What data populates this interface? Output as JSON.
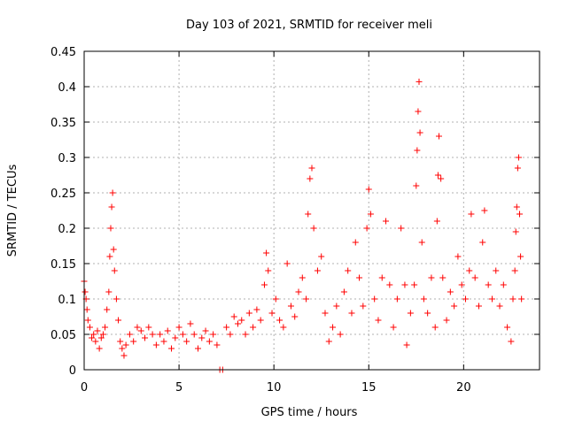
{
  "chart_data": {
    "type": "scatter",
    "title": "Day 103 of 2021, SRMTID for receiver meli",
    "xlabel": "GPS time / hours",
    "ylabel": "SRMTID / TECUs",
    "xlim": [
      0,
      24
    ],
    "ylim": [
      0,
      0.45
    ],
    "x_ticks": [
      0,
      5,
      10,
      15,
      20
    ],
    "x_tick_labels": [
      "0",
      "5",
      "10",
      "15",
      "20"
    ],
    "y_ticks": [
      0,
      0.05,
      0.1,
      0.15,
      0.2,
      0.25,
      0.3,
      0.35,
      0.4,
      0.45
    ],
    "y_tick_labels": [
      "0",
      "0.05",
      "0.1",
      "0.15",
      "0.2",
      "0.25",
      "0.3",
      "0.35",
      "0.4",
      "0.45"
    ],
    "grid": true,
    "marker": "+",
    "color": "#ff0000",
    "series": [
      {
        "name": "SRMTID",
        "points": [
          [
            0.0,
            0.125
          ],
          [
            0.05,
            0.11
          ],
          [
            0.1,
            0.1
          ],
          [
            0.15,
            0.085
          ],
          [
            0.2,
            0.07
          ],
          [
            0.3,
            0.06
          ],
          [
            0.4,
            0.045
          ],
          [
            0.5,
            0.05
          ],
          [
            0.6,
            0.04
          ],
          [
            0.7,
            0.055
          ],
          [
            0.8,
            0.03
          ],
          [
            0.9,
            0.045
          ],
          [
            1.0,
            0.05
          ],
          [
            1.1,
            0.06
          ],
          [
            1.2,
            0.085
          ],
          [
            1.3,
            0.11
          ],
          [
            1.35,
            0.16
          ],
          [
            1.4,
            0.2
          ],
          [
            1.45,
            0.23
          ],
          [
            1.5,
            0.25
          ],
          [
            1.55,
            0.17
          ],
          [
            1.6,
            0.14
          ],
          [
            1.7,
            0.1
          ],
          [
            1.8,
            0.07
          ],
          [
            1.9,
            0.04
          ],
          [
            2.0,
            0.03
          ],
          [
            2.1,
            0.02
          ],
          [
            2.2,
            0.035
          ],
          [
            2.4,
            0.05
          ],
          [
            2.6,
            0.04
          ],
          [
            2.8,
            0.06
          ],
          [
            3.0,
            0.055
          ],
          [
            3.2,
            0.045
          ],
          [
            3.4,
            0.06
          ],
          [
            3.6,
            0.05
          ],
          [
            3.8,
            0.035
          ],
          [
            4.0,
            0.05
          ],
          [
            4.2,
            0.04
          ],
          [
            4.4,
            0.055
          ],
          [
            4.6,
            0.03
          ],
          [
            4.8,
            0.045
          ],
          [
            5.0,
            0.06
          ],
          [
            5.2,
            0.05
          ],
          [
            5.4,
            0.04
          ],
          [
            5.6,
            0.065
          ],
          [
            5.8,
            0.05
          ],
          [
            6.0,
            0.03
          ],
          [
            6.2,
            0.045
          ],
          [
            6.4,
            0.055
          ],
          [
            6.6,
            0.04
          ],
          [
            6.8,
            0.05
          ],
          [
            7.0,
            0.035
          ],
          [
            7.15,
            0.0
          ],
          [
            7.3,
            0.0
          ],
          [
            7.5,
            0.06
          ],
          [
            7.7,
            0.05
          ],
          [
            7.9,
            0.075
          ],
          [
            8.1,
            0.065
          ],
          [
            8.3,
            0.07
          ],
          [
            8.5,
            0.05
          ],
          [
            8.7,
            0.08
          ],
          [
            8.9,
            0.06
          ],
          [
            9.1,
            0.085
          ],
          [
            9.3,
            0.07
          ],
          [
            9.5,
            0.12
          ],
          [
            9.6,
            0.165
          ],
          [
            9.7,
            0.14
          ],
          [
            9.9,
            0.08
          ],
          [
            10.1,
            0.1
          ],
          [
            10.3,
            0.07
          ],
          [
            10.5,
            0.06
          ],
          [
            10.7,
            0.15
          ],
          [
            10.9,
            0.09
          ],
          [
            11.1,
            0.075
          ],
          [
            11.3,
            0.11
          ],
          [
            11.5,
            0.13
          ],
          [
            11.7,
            0.1
          ],
          [
            11.8,
            0.22
          ],
          [
            11.9,
            0.27
          ],
          [
            12.0,
            0.285
          ],
          [
            12.1,
            0.2
          ],
          [
            12.3,
            0.14
          ],
          [
            12.5,
            0.16
          ],
          [
            12.7,
            0.08
          ],
          [
            12.9,
            0.04
          ],
          [
            13.1,
            0.06
          ],
          [
            13.3,
            0.09
          ],
          [
            13.5,
            0.05
          ],
          [
            13.7,
            0.11
          ],
          [
            13.9,
            0.14
          ],
          [
            14.1,
            0.08
          ],
          [
            14.3,
            0.18
          ],
          [
            14.5,
            0.13
          ],
          [
            14.7,
            0.09
          ],
          [
            14.9,
            0.2
          ],
          [
            15.0,
            0.255
          ],
          [
            15.1,
            0.22
          ],
          [
            15.3,
            0.1
          ],
          [
            15.5,
            0.07
          ],
          [
            15.7,
            0.13
          ],
          [
            15.9,
            0.21
          ],
          [
            16.1,
            0.12
          ],
          [
            16.3,
            0.06
          ],
          [
            16.5,
            0.1
          ],
          [
            16.7,
            0.2
          ],
          [
            16.9,
            0.12
          ],
          [
            17.0,
            0.035
          ],
          [
            17.2,
            0.08
          ],
          [
            17.4,
            0.12
          ],
          [
            17.5,
            0.26
          ],
          [
            17.55,
            0.31
          ],
          [
            17.6,
            0.365
          ],
          [
            17.65,
            0.407
          ],
          [
            17.7,
            0.335
          ],
          [
            17.8,
            0.18
          ],
          [
            17.9,
            0.1
          ],
          [
            18.1,
            0.08
          ],
          [
            18.3,
            0.13
          ],
          [
            18.5,
            0.06
          ],
          [
            18.6,
            0.21
          ],
          [
            18.65,
            0.275
          ],
          [
            18.7,
            0.33
          ],
          [
            18.8,
            0.27
          ],
          [
            18.9,
            0.13
          ],
          [
            19.1,
            0.07
          ],
          [
            19.3,
            0.11
          ],
          [
            19.5,
            0.09
          ],
          [
            19.7,
            0.16
          ],
          [
            19.9,
            0.12
          ],
          [
            20.1,
            0.1
          ],
          [
            20.3,
            0.14
          ],
          [
            20.4,
            0.22
          ],
          [
            20.6,
            0.13
          ],
          [
            20.8,
            0.09
          ],
          [
            21.0,
            0.18
          ],
          [
            21.1,
            0.225
          ],
          [
            21.3,
            0.12
          ],
          [
            21.5,
            0.1
          ],
          [
            21.7,
            0.14
          ],
          [
            21.9,
            0.09
          ],
          [
            22.1,
            0.12
          ],
          [
            22.3,
            0.06
          ],
          [
            22.5,
            0.04
          ],
          [
            22.6,
            0.1
          ],
          [
            22.7,
            0.14
          ],
          [
            22.75,
            0.195
          ],
          [
            22.8,
            0.23
          ],
          [
            22.85,
            0.285
          ],
          [
            22.9,
            0.3
          ],
          [
            22.95,
            0.22
          ],
          [
            23.0,
            0.16
          ],
          [
            23.05,
            0.1
          ]
        ]
      }
    ]
  }
}
